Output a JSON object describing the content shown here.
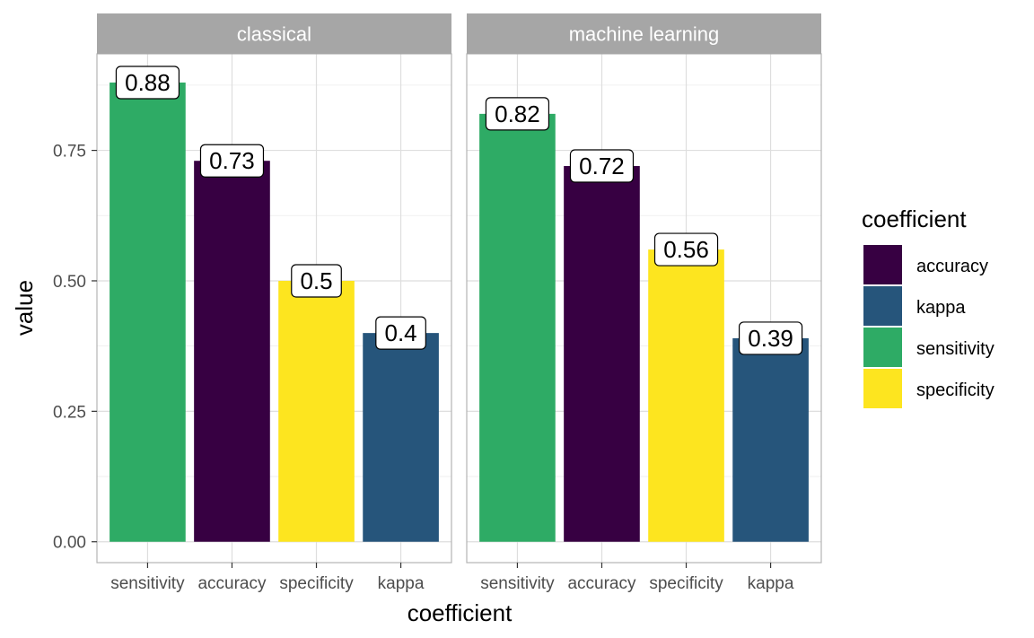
{
  "chart_data": {
    "type": "bar",
    "xlabel": "coefficient",
    "ylabel": "value",
    "ylim": [
      -0.04,
      0.935
    ],
    "yticks": [
      0,
      0.25,
      0.5,
      0.75
    ],
    "ytick_labels": [
      "0.00",
      "0.25",
      "0.50",
      "0.75"
    ],
    "grid": true,
    "categories": [
      "sensitivity",
      "accuracy",
      "specificity",
      "kappa"
    ],
    "facets": [
      {
        "label": "classical",
        "values": [
          0.88,
          0.73,
          0.5,
          0.4
        ],
        "labels": [
          "0.88",
          "0.73",
          "0.5",
          "0.4"
        ]
      },
      {
        "label": "machine learning",
        "values": [
          0.82,
          0.72,
          0.56,
          0.39
        ],
        "labels": [
          "0.82",
          "0.72",
          "0.56",
          "0.39"
        ]
      }
    ],
    "legend": {
      "title": "coefficient",
      "position": "right",
      "entries": [
        "accuracy",
        "kappa",
        "sensitivity",
        "specificity"
      ]
    },
    "colors": {
      "sensitivity": "#2eab65",
      "accuracy": "#370042",
      "specificity": "#fde51f",
      "kappa": "#26557b",
      "strip": "#a6a6a6",
      "grid": "#dedede",
      "panel_border": "#b3b3b3"
    }
  }
}
